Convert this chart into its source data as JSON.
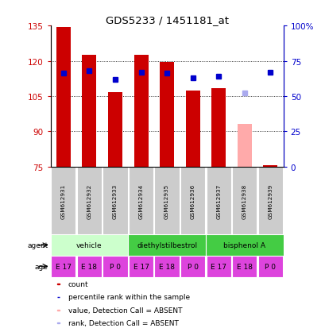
{
  "title": "GDS5233 / 1451181_at",
  "samples": [
    "GSM612931",
    "GSM612932",
    "GSM612933",
    "GSM612934",
    "GSM612935",
    "GSM612936",
    "GSM612937",
    "GSM612938",
    "GSM612939"
  ],
  "count_values": [
    134.5,
    122.5,
    106.5,
    122.5,
    119.5,
    107.5,
    108.5,
    null,
    75.5
  ],
  "rank_values": [
    66,
    68,
    62,
    67,
    66,
    63,
    64,
    null,
    67
  ],
  "count_absent": [
    null,
    null,
    null,
    null,
    null,
    null,
    null,
    93.0,
    null
  ],
  "rank_absent": [
    null,
    null,
    null,
    null,
    null,
    null,
    null,
    52,
    null
  ],
  "ylim_left": [
    75,
    135
  ],
  "ylim_right": [
    0,
    100
  ],
  "yticks_left": [
    75,
    90,
    105,
    120,
    135
  ],
  "yticks_right": [
    0,
    25,
    50,
    75,
    100
  ],
  "ytick_labels_right": [
    "0",
    "25",
    "50",
    "75",
    "100%"
  ],
  "bar_color": "#cc0000",
  "bar_absent_color": "#ffaaaa",
  "rank_color": "#0000cc",
  "rank_absent_color": "#aaaaee",
  "bar_width": 0.55,
  "agent_configs": [
    {
      "label": "vehicle",
      "start": 0,
      "end": 3,
      "color": "#ccffcc"
    },
    {
      "label": "diethylstilbestrol",
      "start": 3,
      "end": 6,
      "color": "#44cc44"
    },
    {
      "label": "bisphenol A",
      "start": 6,
      "end": 9,
      "color": "#44cc44"
    }
  ],
  "ages": [
    "E 17",
    "E 18",
    "P 0",
    "E 17",
    "E 18",
    "P 0",
    "E 17",
    "E 18",
    "P 0"
  ],
  "age_color": "#dd44dd",
  "gsm_color": "#cccccc",
  "legend_items": [
    {
      "color": "#cc0000",
      "label": "count"
    },
    {
      "color": "#0000cc",
      "label": "percentile rank within the sample"
    },
    {
      "color": "#ffaaaa",
      "label": "value, Detection Call = ABSENT"
    },
    {
      "color": "#aaaaee",
      "label": "rank, Detection Call = ABSENT"
    }
  ]
}
